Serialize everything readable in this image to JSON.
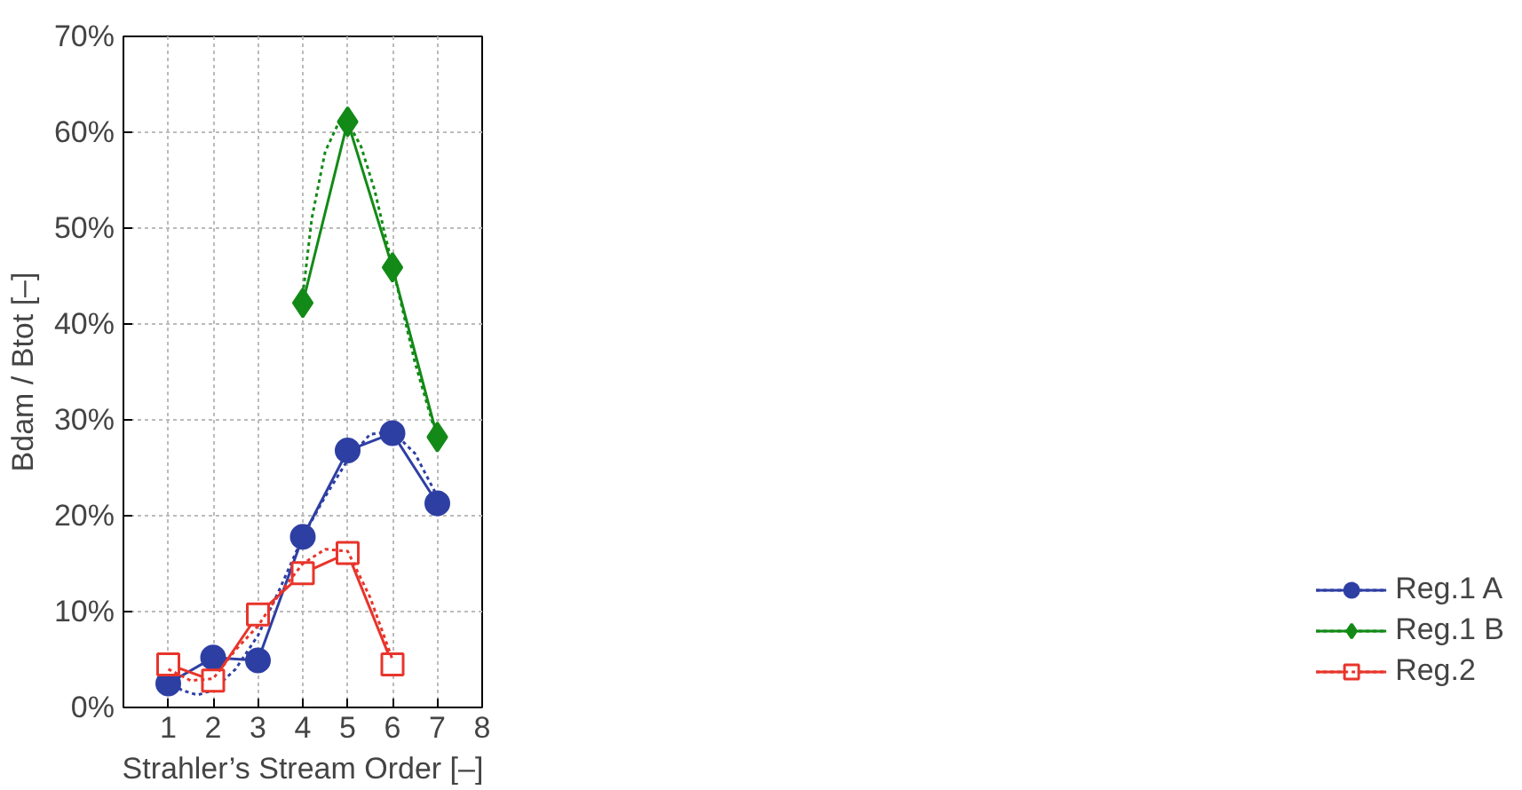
{
  "chart_data": {
    "type": "line",
    "xlabel": "Strahler’s Stream Order [–]",
    "ylabel": "Bdam / Btot [–]",
    "xlim": [
      0,
      8
    ],
    "xticks": [
      1,
      2,
      3,
      4,
      5,
      6,
      7,
      8
    ],
    "ylim": [
      0,
      70
    ],
    "yticks": [
      {
        "value": 0,
        "label": "0%"
      },
      {
        "value": 10,
        "label": "10%"
      },
      {
        "value": 20,
        "label": "20%"
      },
      {
        "value": 30,
        "label": "30%"
      },
      {
        "value": 40,
        "label": "40%"
      },
      {
        "value": 50,
        "label": "50%"
      },
      {
        "value": 60,
        "label": "60%"
      },
      {
        "value": 70,
        "label": "70%"
      }
    ],
    "grid": true,
    "legend": "bottom right",
    "series": [
      {
        "name": "Reg.1 A",
        "color": "#2e3fa3",
        "marker": "circle",
        "line_style": "solid",
        "x": [
          1,
          2,
          3,
          4,
          5,
          6,
          7
        ],
        "values": [
          2.5,
          5.2,
          4.9,
          17.8,
          26.8,
          28.6,
          21.3
        ]
      },
      {
        "color": "#2e3fa3",
        "marker": "none",
        "line_style": "dotted",
        "x": [
          1,
          1.3,
          1.65,
          2,
          2.5,
          3,
          3.5,
          4,
          4.5,
          5,
          5.5,
          6,
          6.5,
          7
        ],
        "values": [
          3.0,
          1.8,
          1.3,
          1.8,
          4.0,
          7.5,
          12.5,
          17.8,
          22,
          25.8,
          28.5,
          28.8,
          26.5,
          22
        ]
      },
      {
        "name": "Reg.1 B",
        "color": "#138a17",
        "marker": "diamond",
        "line_style": "solid",
        "x": [
          4,
          5,
          6,
          7
        ],
        "values": [
          42.2,
          61.1,
          45.9,
          28.2
        ]
      },
      {
        "color": "#138a17",
        "marker": "none",
        "line_style": "dotted",
        "x": [
          4,
          4.2,
          4.5,
          4.8,
          5,
          5.3,
          5.6,
          6,
          6.5,
          7
        ],
        "values": [
          43,
          51,
          58,
          61,
          61.1,
          58.5,
          54,
          46,
          36,
          28
        ]
      },
      {
        "name": "Reg.2",
        "color": "#e8352b",
        "marker": "square",
        "line_style": "solid",
        "x": [
          1,
          2,
          3,
          4,
          5,
          6
        ],
        "values": [
          4.5,
          2.8,
          9.7,
          14.0,
          16.1,
          4.5
        ]
      },
      {
        "color": "#e8352b",
        "marker": "none",
        "line_style": "dotted",
        "x": [
          1,
          1.5,
          2,
          2.5,
          3,
          3.5,
          4,
          4.5,
          5,
          5.5,
          6
        ],
        "values": [
          4.0,
          2.8,
          3.0,
          6,
          8.5,
          12,
          15,
          16.5,
          16.3,
          11.5,
          5
        ]
      }
    ]
  }
}
